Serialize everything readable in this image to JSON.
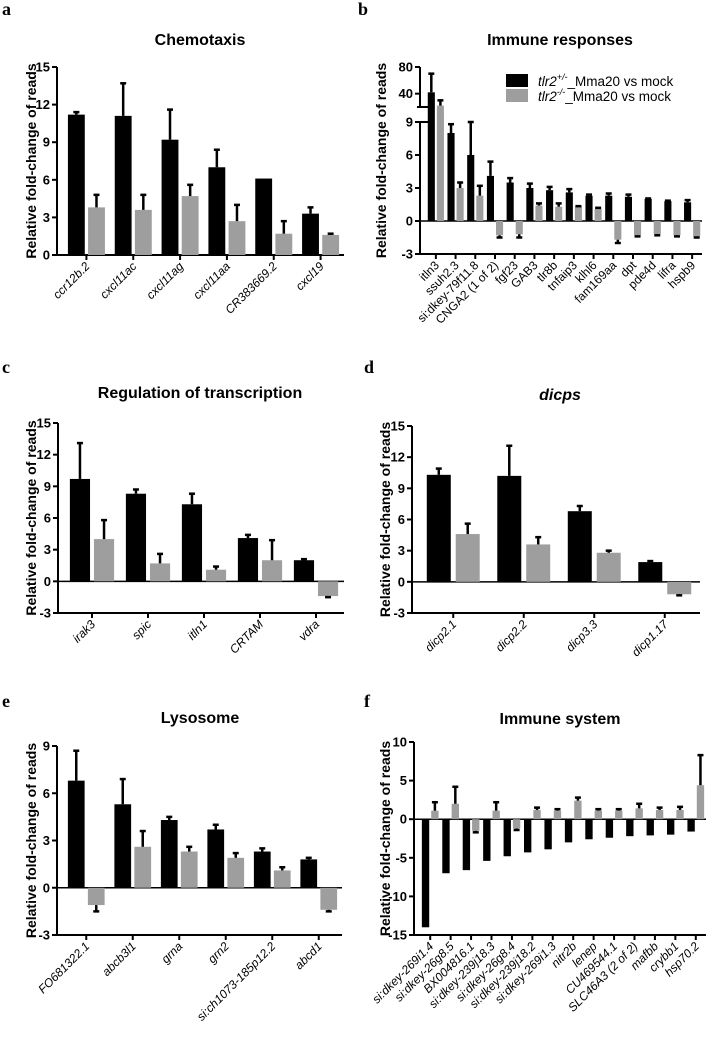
{
  "figure": {
    "series_names": [
      "tlr2+/-_Mma20 vs mock",
      "tlr2-/-_Mma20 vs mock"
    ],
    "colors": {
      "het": "#000000",
      "ko": "#9e9e9e",
      "axis": "#000000"
    }
  },
  "legend": {
    "entries": [
      {
        "gene": "tlr2",
        "sup": "+/-",
        "suffix": "_Mma20 vs mock",
        "color": "#000000"
      },
      {
        "gene": "tlr2",
        "sup": "-/-",
        "suffix": "_Mma20 vs mock",
        "color": "#9e9e9e"
      }
    ],
    "placement": "top-right of panel b"
  },
  "chart_data": [
    {
      "panel": "a",
      "type": "bar",
      "title": "Chemotaxis",
      "title_italic": false,
      "ylabel": "Relative fold-change of reads",
      "xlabel": "",
      "ylim": [
        0,
        15
      ],
      "yticks": [
        0,
        3,
        6,
        9,
        12,
        15
      ],
      "cat_italic": true,
      "categories": [
        "ccr12b.2",
        "cxcl11ac",
        "cxcl11ag",
        "cxcl11aa",
        "CR383669.2",
        "cxcl19"
      ],
      "series": [
        {
          "name": "tlr2+/-_Mma20 vs mock",
          "values": [
            11.2,
            11.1,
            9.2,
            7.0,
            6.1,
            3.3
          ],
          "errors": [
            0.2,
            2.6,
            2.4,
            1.4,
            0.0,
            0.5
          ]
        },
        {
          "name": "tlr2-/-_Mma20 vs mock",
          "values": [
            3.8,
            3.6,
            4.7,
            2.7,
            1.7,
            1.6
          ],
          "errors": [
            1.0,
            1.2,
            0.9,
            1.3,
            1.0,
            0.1
          ]
        }
      ]
    },
    {
      "panel": "b",
      "type": "bar",
      "title": "Immune responses",
      "title_italic": false,
      "ylabel": "Relative fold-change of reads",
      "xlabel": "",
      "ylim": [
        -3,
        80
      ],
      "axis_break": {
        "lower": [
          -3,
          9
        ],
        "upper": [
          20,
          80
        ]
      },
      "yticks": [
        -3,
        0,
        3,
        6,
        9,
        40,
        80
      ],
      "cat_italic": false,
      "categories": [
        "itln3",
        "ssuh2.3",
        "si:dkey-79f11.8",
        "CNGA2 (1 of 2)",
        "fgf23",
        "GAB3",
        "tlr8b",
        "tnfaip3",
        "klhl6",
        "fam169aa",
        "dpt",
        "pde4d",
        "lifra",
        "hspb9"
      ],
      "series": [
        {
          "name": "tlr2+/-_Mma20 vs mock",
          "values": [
            42,
            8.0,
            6.0,
            4.1,
            3.5,
            3.0,
            2.8,
            2.6,
            2.3,
            2.3,
            2.2,
            2.0,
            1.8,
            1.7
          ],
          "errors": [
            28,
            0.8,
            3.0,
            1.3,
            0.4,
            0.4,
            0.3,
            0.3,
            0.1,
            0.2,
            0.2,
            0.05,
            0.05,
            0.2
          ]
        },
        {
          "name": "tlr2-/-_Mma20 vs mock",
          "values": [
            22,
            3.0,
            2.3,
            -1.3,
            -1.2,
            1.4,
            1.3,
            1.3,
            1.1,
            -1.7,
            -1.3,
            -1.2,
            -1.3,
            -1.4
          ],
          "errors": [
            8,
            0.5,
            0.9,
            0.2,
            0.3,
            0.2,
            0.3,
            0.05,
            0.1,
            0.3,
            0.1,
            0.1,
            0.1,
            0.1
          ]
        }
      ]
    },
    {
      "panel": "c",
      "type": "bar",
      "title": "Regulation of transcription",
      "title_italic": false,
      "ylabel": "Relative fold-change of reads",
      "xlabel": "",
      "ylim": [
        -3,
        15
      ],
      "yticks": [
        -3,
        0,
        3,
        6,
        9,
        12,
        15
      ],
      "cat_italic": true,
      "categories": [
        "irak3",
        "spic",
        "itln1",
        "CRTAM",
        "vdra"
      ],
      "series": [
        {
          "name": "tlr2+/-_Mma20 vs mock",
          "values": [
            9.7,
            8.3,
            7.3,
            4.1,
            2.0
          ],
          "errors": [
            3.4,
            0.4,
            1.0,
            0.3,
            0.1
          ]
        },
        {
          "name": "tlr2-/-_Mma20 vs mock",
          "values": [
            4.0,
            1.7,
            1.1,
            2.0,
            -1.4
          ],
          "errors": [
            1.8,
            0.9,
            0.3,
            1.9,
            0.1
          ]
        }
      ]
    },
    {
      "panel": "d",
      "type": "bar",
      "title": "dicps",
      "title_italic": true,
      "ylabel": "Relative fold-change of reads",
      "xlabel": "",
      "ylim": [
        -3,
        15
      ],
      "yticks": [
        -3,
        0,
        3,
        6,
        9,
        12,
        15
      ],
      "cat_italic": true,
      "categories": [
        "dicp2.1",
        "dicp2.2",
        "dicp3.3",
        "dicp1.17"
      ],
      "series": [
        {
          "name": "tlr2+/-_Mma20 vs mock",
          "values": [
            10.3,
            10.2,
            6.8,
            1.9
          ],
          "errors": [
            0.6,
            2.9,
            0.5,
            0.1
          ]
        },
        {
          "name": "tlr2-/-_Mma20 vs mock",
          "values": [
            4.6,
            3.6,
            2.8,
            -1.2
          ],
          "errors": [
            1.0,
            0.7,
            0.2,
            0.1
          ]
        }
      ]
    },
    {
      "panel": "e",
      "type": "bar",
      "title": "Lysosome",
      "title_italic": false,
      "ylabel": "Relative fold-change of reads",
      "xlabel": "",
      "ylim": [
        -3,
        9
      ],
      "yticks": [
        -3,
        0,
        3,
        6,
        9
      ],
      "cat_italic": true,
      "categories": [
        "FO681322.1",
        "abcb3l1",
        "grna",
        "grn2",
        "si:ch1073-185p12.2",
        "abcd1"
      ],
      "series": [
        {
          "name": "tlr2+/-_Mma20 vs mock",
          "values": [
            6.8,
            5.3,
            4.3,
            3.7,
            2.3,
            1.8
          ],
          "errors": [
            1.9,
            1.6,
            0.2,
            0.3,
            0.2,
            0.1
          ]
        },
        {
          "name": "tlr2-/-_Mma20 vs mock",
          "values": [
            -1.1,
            2.6,
            2.3,
            1.9,
            1.1,
            -1.4
          ],
          "errors": [
            0.4,
            1.0,
            0.3,
            0.3,
            0.2,
            0.1
          ]
        }
      ]
    },
    {
      "panel": "f",
      "type": "bar",
      "title": "Immune system",
      "title_italic": false,
      "ylabel": "Relative fold-change of reads",
      "xlabel": "",
      "ylim": [
        -15,
        10
      ],
      "yticks": [
        -15,
        -10,
        -5,
        0,
        5,
        10
      ],
      "cat_italic": true,
      "categories": [
        "si:dkey-269i1.4",
        "si:dkey-26g8.5",
        "BX004816.1",
        "si:dkey-239j18.3",
        "si:dkey-26g8.4",
        "si:dkey-239j18.2",
        "si:dkey-269i1.3",
        "nitr2b",
        "lenep",
        "CU469544.1",
        "SLC46A3 (2 of 2)",
        "mafbb",
        "crybb1",
        "hsp70.2"
      ],
      "series": [
        {
          "name": "tlr2+/-_Mma20 vs mock",
          "values": [
            -14.0,
            -7.0,
            -6.6,
            -5.4,
            -4.8,
            -4.3,
            -3.9,
            -3.0,
            -2.6,
            -2.4,
            -2.2,
            -2.1,
            -2.0,
            -1.6
          ],
          "errors": [
            0,
            0,
            0,
            0,
            0,
            0,
            0,
            0,
            0,
            0,
            0,
            0,
            0,
            0
          ]
        },
        {
          "name": "tlr2-/-_Mma20 vs mock",
          "values": [
            1.1,
            2.0,
            -1.5,
            1.1,
            -1.2,
            1.2,
            1.1,
            2.4,
            1.1,
            1.1,
            1.4,
            1.2,
            1.2,
            4.4
          ],
          "errors": [
            1.1,
            2.2,
            0.2,
            1.1,
            0.2,
            0.3,
            0.2,
            0.4,
            0.2,
            0.2,
            0.6,
            0.3,
            0.4,
            3.9
          ]
        }
      ]
    }
  ]
}
